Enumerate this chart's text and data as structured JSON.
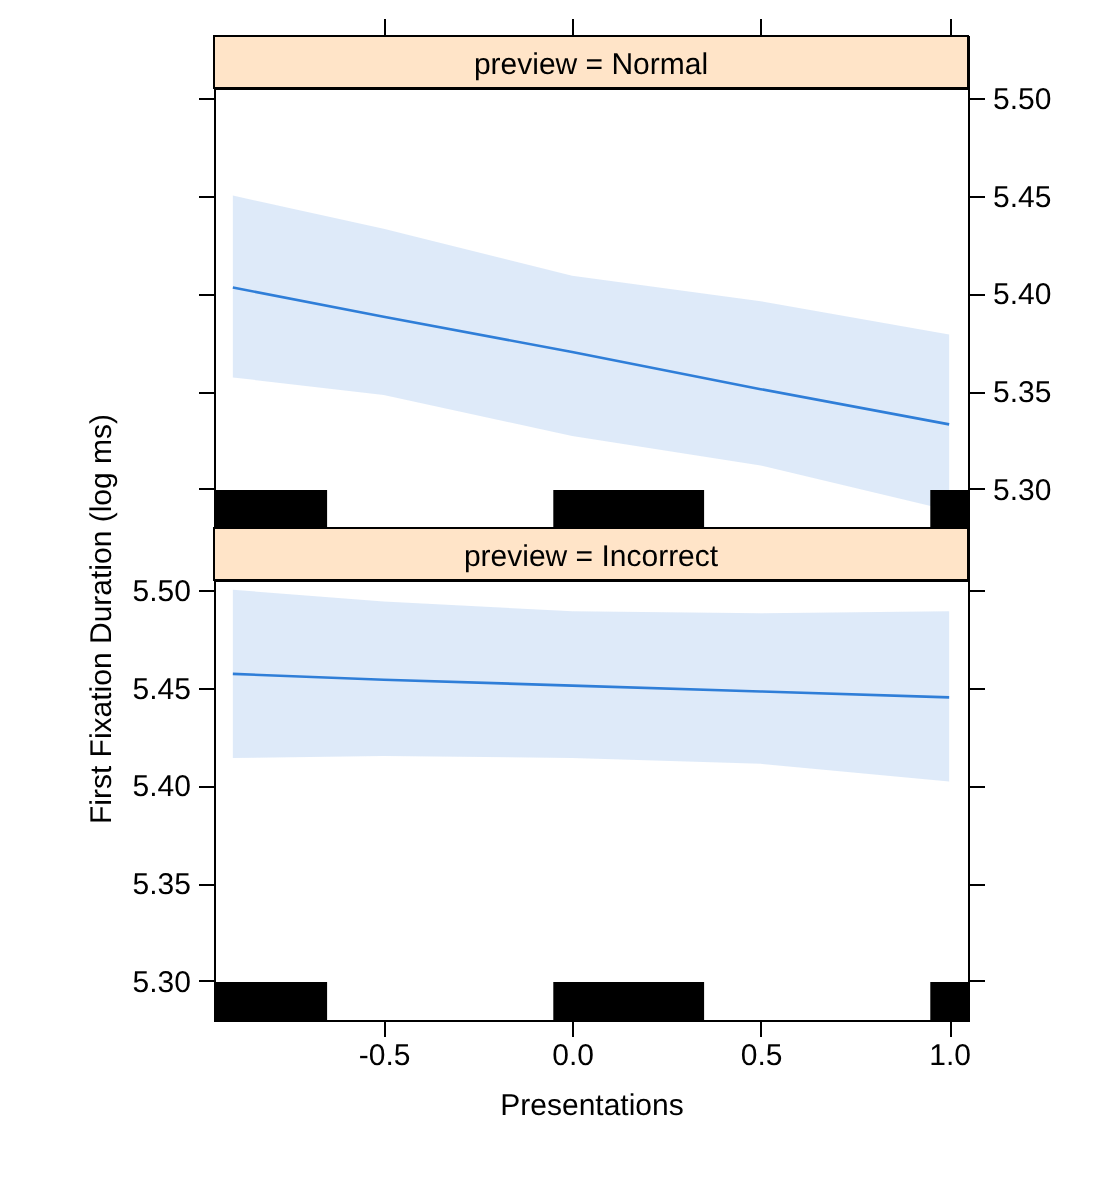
{
  "chart_data": [
    {
      "type": "line",
      "title": "preview = Normal",
      "x": [
        -0.9,
        -0.5,
        0,
        0.5,
        1.0
      ],
      "series": [
        {
          "color": "#2f7ed8",
          "values": [
            5.403,
            5.388,
            5.37,
            5.351,
            5.333
          ],
          "lower": [
            5.357,
            5.348,
            5.327,
            5.312,
            5.289
          ],
          "upper": [
            5.45,
            5.433,
            5.409,
            5.396,
            5.379
          ]
        }
      ],
      "bands": [
        {
          "axis": "x",
          "from": -0.95,
          "to": -0.65,
          "color": "#000000"
        },
        {
          "axis": "x",
          "from": -0.05,
          "to": 0.35,
          "color": "#000000"
        },
        {
          "axis": "x",
          "from": 0.95,
          "to": 1.05,
          "color": "#000000"
        }
      ],
      "xlim": [
        -0.95,
        1.05
      ],
      "xticks": [
        -0.5,
        0,
        0.5,
        1
      ],
      "ylim": [
        5.28,
        5.505
      ],
      "yticks": [
        {
          "value": 5.3,
          "label": "5.30"
        },
        {
          "value": 5.35,
          "label": "5.35"
        },
        {
          "value": 5.4,
          "label": "5.40"
        },
        {
          "value": 5.45,
          "label": "5.45"
        },
        {
          "value": 5.5,
          "label": "5.50"
        }
      ],
      "tick_labels": "y"
    },
    {
      "type": "line",
      "title": "preview = Incorrect",
      "xlabel": "Presentations",
      "ylabel": "First Fixation Duration (log ms)",
      "x": [
        -0.9,
        -0.5,
        0,
        0.5,
        1.0
      ],
      "series": [
        {
          "color": "#2f7ed8",
          "values": [
            5.457,
            5.454,
            5.451,
            5.448,
            5.445
          ],
          "lower": [
            5.414,
            5.415,
            5.414,
            5.411,
            5.402
          ],
          "upper": [
            5.5,
            5.494,
            5.489,
            5.488,
            5.489
          ]
        }
      ],
      "bands": [
        {
          "axis": "x",
          "from": -0.95,
          "to": -0.65,
          "color": "#000000"
        },
        {
          "axis": "x",
          "from": -0.05,
          "to": 0.35,
          "color": "#000000"
        },
        {
          "axis": "x",
          "from": 0.95,
          "to": 1.05,
          "color": "#000000"
        }
      ],
      "xlim": [
        -0.95,
        1.05
      ],
      "xticks": [
        {
          "value": -0.5,
          "label": "-0.5"
        },
        {
          "value": 0,
          "label": "0.0"
        },
        {
          "value": 0.5,
          "label": "0.5"
        },
        {
          "value": 1,
          "label": "1.0"
        }
      ],
      "ylim": [
        5.28,
        5.505
      ],
      "yticks": [
        {
          "value": 5.3,
          "label": "5.30"
        },
        {
          "value": 5.35,
          "label": "5.35"
        },
        {
          "value": 5.4,
          "label": "5.40"
        },
        {
          "value": 5.45,
          "label": "5.45"
        },
        {
          "value": 5.5,
          "label": "5.50"
        }
      ]
    }
  ]
}
